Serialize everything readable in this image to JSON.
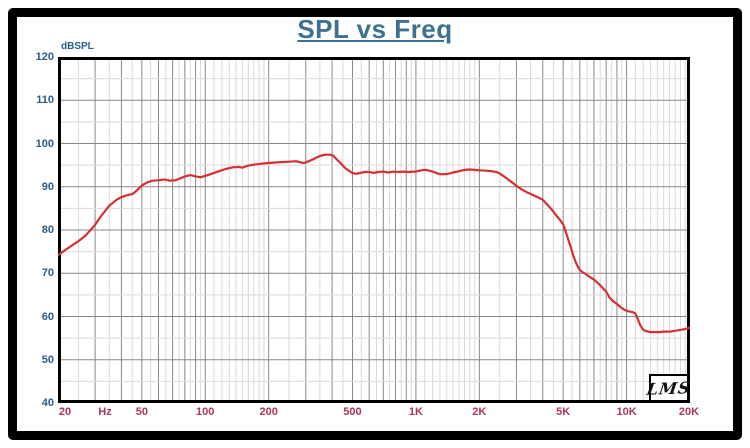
{
  "window": {
    "frame_color": "#000000",
    "background": "#ffffff"
  },
  "header": {
    "title": "SPL vs Freq",
    "title_color": "#3e7191"
  },
  "chart_data": {
    "type": "line",
    "title": "SPL vs Freq",
    "ylabel": "dBSPL",
    "x_unit": "Hz",
    "xscale": "log",
    "xlim": [
      20,
      20000
    ],
    "ylim": [
      40,
      120
    ],
    "grid": {
      "shown": true,
      "h_minor_step": 5,
      "h_major_step": 10,
      "minor_color": "#d9d9d9",
      "major_color": "#878787",
      "border_color": "#000000"
    },
    "y_ticks": [
      120,
      110,
      100,
      90,
      80,
      70,
      60,
      50,
      40
    ],
    "x_ticks": [
      {
        "f": 20,
        "label": "20"
      },
      {
        "f": 50,
        "label": "50"
      },
      {
        "f": 100,
        "label": "100"
      },
      {
        "f": 200,
        "label": "200"
      },
      {
        "f": 500,
        "label": "500"
      },
      {
        "f": 1000,
        "label": "1K"
      },
      {
        "f": 2000,
        "label": "2K"
      },
      {
        "f": 5000,
        "label": "5K"
      },
      {
        "f": 10000,
        "label": "10K"
      },
      {
        "f": 20000,
        "label": "20K"
      }
    ],
    "axis_label_colors": {
      "y": "#2a5c8a",
      "x": "#a6355f"
    },
    "watermark": "LMS",
    "series": [
      {
        "name": "SPL",
        "color": "#d52f2f",
        "width": 2.2,
        "points": [
          [
            20,
            74.2
          ],
          [
            22,
            75.6
          ],
          [
            25,
            77.4
          ],
          [
            27,
            78.7
          ],
          [
            30,
            81.2
          ],
          [
            32,
            83.2
          ],
          [
            35,
            85.6
          ],
          [
            38,
            87.0
          ],
          [
            40,
            87.6
          ],
          [
            43,
            88.1
          ],
          [
            45,
            88.3
          ],
          [
            47,
            89.0
          ],
          [
            50,
            90.3
          ],
          [
            53,
            91.0
          ],
          [
            56,
            91.4
          ],
          [
            60,
            91.5
          ],
          [
            64,
            91.7
          ],
          [
            68,
            91.4
          ],
          [
            72,
            91.5
          ],
          [
            76,
            91.9
          ],
          [
            80,
            92.4
          ],
          [
            85,
            92.7
          ],
          [
            90,
            92.4
          ],
          [
            95,
            92.2
          ],
          [
            100,
            92.5
          ],
          [
            107,
            93.0
          ],
          [
            115,
            93.5
          ],
          [
            125,
            94.1
          ],
          [
            135,
            94.5
          ],
          [
            145,
            94.6
          ],
          [
            150,
            94.4
          ],
          [
            160,
            94.9
          ],
          [
            175,
            95.2
          ],
          [
            190,
            95.4
          ],
          [
            200,
            95.5
          ],
          [
            215,
            95.6
          ],
          [
            230,
            95.7
          ],
          [
            250,
            95.8
          ],
          [
            270,
            95.9
          ],
          [
            285,
            95.6
          ],
          [
            295,
            95.5
          ],
          [
            310,
            95.9
          ],
          [
            330,
            96.5
          ],
          [
            350,
            97.1
          ],
          [
            370,
            97.4
          ],
          [
            390,
            97.4
          ],
          [
            405,
            97.2
          ],
          [
            420,
            96.4
          ],
          [
            440,
            95.4
          ],
          [
            460,
            94.4
          ],
          [
            480,
            93.7
          ],
          [
            500,
            93.2
          ],
          [
            520,
            93.0
          ],
          [
            545,
            93.2
          ],
          [
            570,
            93.4
          ],
          [
            600,
            93.4
          ],
          [
            630,
            93.2
          ],
          [
            660,
            93.4
          ],
          [
            700,
            93.5
          ],
          [
            740,
            93.3
          ],
          [
            780,
            93.5
          ],
          [
            820,
            93.4
          ],
          [
            870,
            93.5
          ],
          [
            920,
            93.4
          ],
          [
            970,
            93.5
          ],
          [
            1000,
            93.5
          ],
          [
            1060,
            93.8
          ],
          [
            1120,
            93.9
          ],
          [
            1200,
            93.5
          ],
          [
            1300,
            92.9
          ],
          [
            1400,
            92.9
          ],
          [
            1500,
            93.3
          ],
          [
            1600,
            93.6
          ],
          [
            1700,
            93.9
          ],
          [
            1800,
            94.0
          ],
          [
            1900,
            93.9
          ],
          [
            2000,
            93.8
          ],
          [
            2150,
            93.7
          ],
          [
            2300,
            93.6
          ],
          [
            2450,
            93.3
          ],
          [
            2600,
            92.5
          ],
          [
            2750,
            91.6
          ],
          [
            2900,
            90.8
          ],
          [
            3000,
            90.2
          ],
          [
            3200,
            89.3
          ],
          [
            3400,
            88.6
          ],
          [
            3700,
            87.8
          ],
          [
            4000,
            87.0
          ],
          [
            4200,
            85.9
          ],
          [
            4400,
            84.8
          ],
          [
            4600,
            83.6
          ],
          [
            4800,
            82.5
          ],
          [
            5000,
            81.3
          ],
          [
            5150,
            79.5
          ],
          [
            5300,
            77.6
          ],
          [
            5450,
            75.8
          ],
          [
            5600,
            73.9
          ],
          [
            5750,
            72.4
          ],
          [
            5900,
            71.3
          ],
          [
            6000,
            70.8
          ],
          [
            6200,
            70.2
          ],
          [
            6400,
            69.8
          ],
          [
            6700,
            69.1
          ],
          [
            7000,
            68.5
          ],
          [
            7400,
            67.5
          ],
          [
            7800,
            66.3
          ],
          [
            8000,
            65.7
          ],
          [
            8300,
            64.4
          ],
          [
            8600,
            63.6
          ],
          [
            9000,
            62.9
          ],
          [
            9400,
            62.1
          ],
          [
            9800,
            61.5
          ],
          [
            10200,
            61.2
          ],
          [
            10700,
            61.0
          ],
          [
            11000,
            60.7
          ],
          [
            11300,
            59.4
          ],
          [
            11600,
            58.0
          ],
          [
            12000,
            56.9
          ],
          [
            12400,
            56.6
          ],
          [
            13000,
            56.4
          ],
          [
            13600,
            56.4
          ],
          [
            14300,
            56.4
          ],
          [
            15000,
            56.5
          ],
          [
            16000,
            56.5
          ],
          [
            17000,
            56.7
          ],
          [
            18000,
            56.9
          ],
          [
            19000,
            57.1
          ],
          [
            20000,
            57.4
          ]
        ]
      }
    ]
  }
}
